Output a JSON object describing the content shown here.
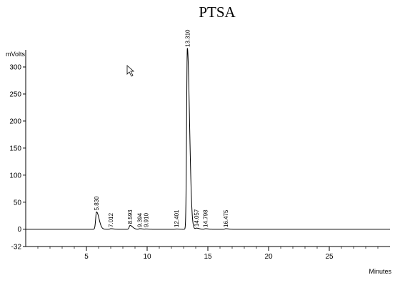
{
  "chart_data": {
    "type": "line",
    "title": "PTSA",
    "ylabel": "mVolts",
    "xlabel": "Minutes",
    "xlim": [
      0,
      30
    ],
    "ylim": [
      -32,
      330
    ],
    "x_ticks": [
      5,
      10,
      15,
      20,
      25
    ],
    "y_ticks": [
      -32,
      0,
      50,
      100,
      150,
      200,
      250,
      300
    ],
    "grid": false,
    "peaks": [
      {
        "rt": 5.83,
        "label": "5.830",
        "height": 32
      },
      {
        "rt": 7.012,
        "label": "7.012",
        "height": 1
      },
      {
        "rt": 8.593,
        "label": "8.593",
        "height": 7
      },
      {
        "rt": 9.394,
        "label": "9.394",
        "height": 1
      },
      {
        "rt": 9.91,
        "label": "9.910",
        "height": 0.5
      },
      {
        "rt": 12.401,
        "label": "12.401",
        "height": 0.5
      },
      {
        "rt": 13.31,
        "label": "13.310",
        "height": 335
      },
      {
        "rt": 14.057,
        "label": "14.057",
        "height": 2
      },
      {
        "rt": 14.798,
        "label": "14.798",
        "height": 1
      },
      {
        "rt": 16.475,
        "label": "16.475",
        "height": 1
      }
    ]
  }
}
